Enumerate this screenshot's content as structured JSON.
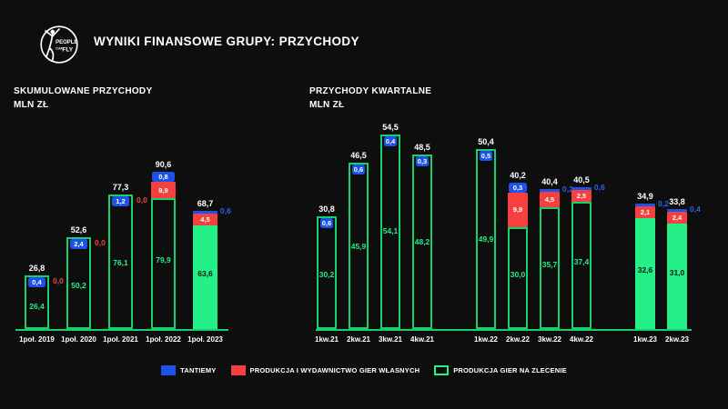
{
  "header": {
    "title": "WYNIKI FINANSOWE GRUPY: PRZYCHODY",
    "logo": {
      "line1": "PEOPLE",
      "line2": "CAN",
      "line3": "FLY"
    }
  },
  "colors": {
    "background": "#0e0e0e",
    "green_fill": "#25ef87",
    "green_stroke": "#16cf6d",
    "red": "#f4403e",
    "blue": "#1c52e8",
    "white": "#ffffff"
  },
  "legend": {
    "items": [
      {
        "label": "TANTIEMY",
        "style": "blue-filled"
      },
      {
        "label": "PRODUKCJA I WYDAWNICTWO GIER WŁASNYCH",
        "style": "red-filled"
      },
      {
        "label": "PRODUKCJA GIER NA ZLECENIE",
        "style": "green-outline"
      }
    ]
  },
  "chart_data": [
    {
      "type": "bar",
      "stacked": true,
      "title": "SKUMULOWANE PRZYCHODY",
      "unit_label": "MLN ZŁ",
      "series_names": [
        "TANTIEMY",
        "PRODUKCJA I WYDAWNICTWO GIER WŁASNYCH",
        "PRODUKCJA GIER NA ZLECENIE"
      ],
      "categories": [
        "1poł. 2019",
        "1poł. 2020",
        "1poł. 2021",
        "1poł. 2022",
        "1poł. 2023"
      ],
      "bars": [
        {
          "category": "1poł. 2019",
          "total": "26,8",
          "tantiemy": "0,4",
          "tantiemy_style": "badge",
          "wydawnictwo": "0,0",
          "wydawnictwo_style": "zero-label",
          "zlecenie": "26,4",
          "zlecenie_style": "outline"
        },
        {
          "category": "1poł. 2020",
          "total": "52,6",
          "tantiemy": "2,4",
          "tantiemy_style": "badge",
          "wydawnictwo": "0,0",
          "wydawnictwo_style": "zero-label",
          "zlecenie": "50,2",
          "zlecenie_style": "outline"
        },
        {
          "category": "1poł. 2021",
          "total": "77,3",
          "tantiemy": "1,2",
          "tantiemy_style": "badge",
          "wydawnictwo": "0,0",
          "wydawnictwo_style": "zero-label",
          "zlecenie": "76,1",
          "zlecenie_style": "outline"
        },
        {
          "category": "1poł. 2022",
          "total": "90,6",
          "tantiemy": "0,8",
          "tantiemy_style": "badge",
          "wydawnictwo": "9,9",
          "wydawnictwo_style": "box",
          "zlecenie": "79,9",
          "zlecenie_style": "outline"
        },
        {
          "category": "1poł. 2023",
          "total": "68,7",
          "tantiemy": "0,6",
          "tantiemy_style": "outside",
          "wydawnictwo": "4,5",
          "wydawnictwo_style": "box",
          "zlecenie": "63,6",
          "zlecenie_style": "filled"
        }
      ]
    },
    {
      "type": "bar",
      "stacked": true,
      "title": "PRZYCHODY KWARTALNE",
      "unit_label": "MLN ZŁ",
      "series_names": [
        "TANTIEMY",
        "PRODUKCJA I WYDAWNICTWO GIER WŁASNYCH",
        "PRODUKCJA GIER NA ZLECENIE"
      ],
      "categories": [
        "1kw.21",
        "2kw.21",
        "3kw.21",
        "4kw.21",
        "1kw.22",
        "2kw.22",
        "3kw.22",
        "4kw.22",
        "1kw.23",
        "2kw.23"
      ],
      "bars": [
        {
          "category": "1kw.21",
          "total": "30,8",
          "tantiemy": "0,6",
          "tantiemy_style": "badge",
          "wydawnictwo": null,
          "wydawnictwo_style": "none",
          "zlecenie": "30,2",
          "zlecenie_style": "outline"
        },
        {
          "category": "2kw.21",
          "total": "46,5",
          "tantiemy": "0,6",
          "tantiemy_style": "badge",
          "wydawnictwo": null,
          "wydawnictwo_style": "none",
          "zlecenie": "45,9",
          "zlecenie_style": "outline"
        },
        {
          "category": "3kw.21",
          "total": "54,5",
          "tantiemy": "0,4",
          "tantiemy_style": "badge",
          "wydawnictwo": null,
          "wydawnictwo_style": "none",
          "zlecenie": "54,1",
          "zlecenie_style": "outline"
        },
        {
          "category": "4kw.21",
          "total": "48,5",
          "tantiemy": "0,3",
          "tantiemy_style": "badge",
          "wydawnictwo": null,
          "wydawnictwo_style": "none",
          "zlecenie": "48,2",
          "zlecenie_style": "outline"
        },
        {
          "category": "1kw.22",
          "total": "50,4",
          "tantiemy": "0,5",
          "tantiemy_style": "badge",
          "wydawnictwo": null,
          "wydawnictwo_style": "none",
          "zlecenie": "49,9",
          "zlecenie_style": "outline"
        },
        {
          "category": "2kw.22",
          "total": "40,2",
          "tantiemy": "0,3",
          "tantiemy_style": "badge",
          "wydawnictwo": "9,9",
          "wydawnictwo_style": "box",
          "zlecenie": "30,0",
          "zlecenie_style": "outline"
        },
        {
          "category": "3kw.22",
          "total": "40,4",
          "tantiemy": "0,2",
          "tantiemy_style": "outside",
          "wydawnictwo": "4,5",
          "wydawnictwo_style": "box",
          "zlecenie": "35,7",
          "zlecenie_style": "outline"
        },
        {
          "category": "4kw.22",
          "total": "40,5",
          "tantiemy": "0,6",
          "tantiemy_style": "outside",
          "wydawnictwo": "2,5",
          "wydawnictwo_style": "box",
          "zlecenie": "37,4",
          "zlecenie_style": "outline"
        },
        {
          "category": "1kw.23",
          "total": "34,9",
          "tantiemy": "0,2",
          "tantiemy_style": "outside",
          "wydawnictwo": "2,1",
          "wydawnictwo_style": "box",
          "zlecenie": "32,6",
          "zlecenie_style": "filled"
        },
        {
          "category": "2kw.23",
          "total": "33,8",
          "tantiemy": "0,4",
          "tantiemy_style": "outside",
          "wydawnictwo": "2,4",
          "wydawnictwo_style": "box",
          "zlecenie": "31,0",
          "zlecenie_style": "filled"
        }
      ]
    }
  ]
}
